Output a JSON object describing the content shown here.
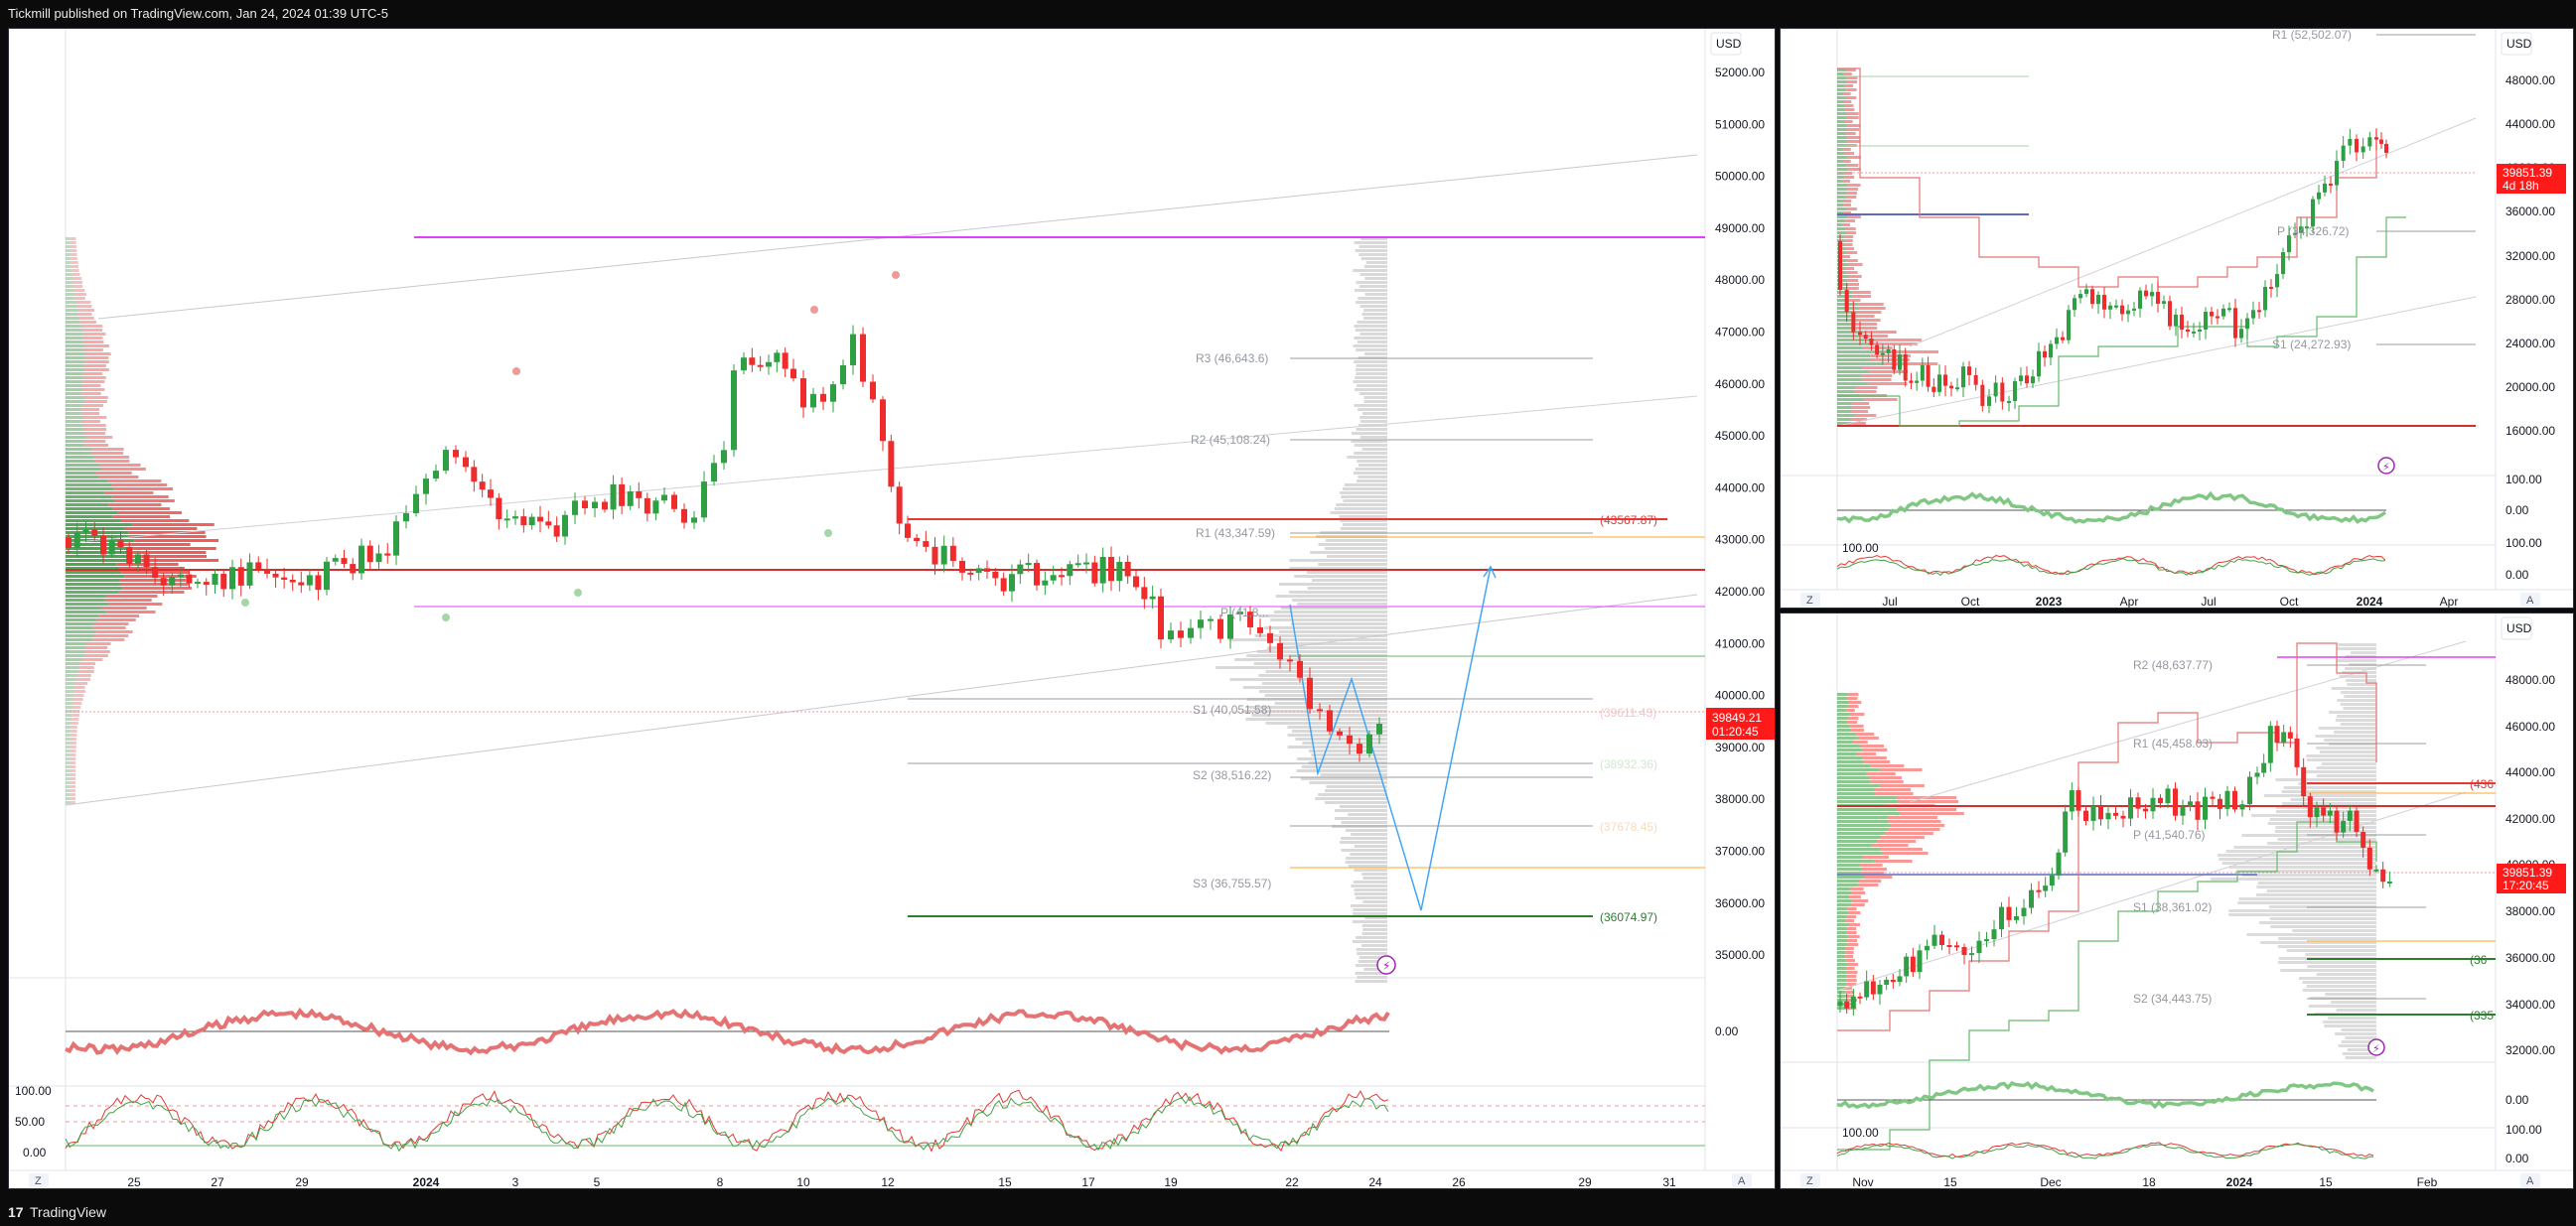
{
  "header": {
    "text": "Tickmill published on TradingView.com, Jan 24, 2024 01:39 UTC-5"
  },
  "footer": {
    "logo": "17",
    "brand": "TradingView"
  },
  "currency": "USD",
  "colors": {
    "bull": "#2ea043",
    "bear": "#ef2b2b",
    "price_tag": "#ff1a1a",
    "magenta": "#e040fb",
    "blue": "#2962ff"
  },
  "main": {
    "price_axis": [
      "52000.00",
      "51000.00",
      "50000.00",
      "49000.00",
      "48000.00",
      "47000.00",
      "46000.00",
      "45000.00",
      "44000.00",
      "43000.00",
      "42000.00",
      "41000.00",
      "40000.00",
      "39000.00",
      "38000.00",
      "37000.00",
      "36000.00",
      "35000.00"
    ],
    "osc_axis": "0.00",
    "stoch_axis": [
      "100.00",
      "50.00",
      "0.00"
    ],
    "time_axis": [
      "25",
      "27",
      "29",
      "2024",
      "3",
      "5",
      "8",
      "10",
      "12",
      "15",
      "17",
      "19",
      "22",
      "24",
      "26",
      "29",
      "31"
    ],
    "price_tag": {
      "value": "39849.21",
      "countdown": "01:20:45"
    },
    "levels": {
      "r3": "R3 (46,643.6)",
      "r2": "R2 (45,108.24)",
      "r1": "R1 (43,347.59)",
      "p": "P (41,8...",
      "s1": "S1 (40,051.58)",
      "s2": "S2 (38,516.22)",
      "s3": "S3 (36,755.57)",
      "red_level": "(43567.87)",
      "green_level": "(36074.97)",
      "faded_1": "(39611.43)",
      "faded_2": "(38932.36)",
      "faded_3": "(37678.45)"
    },
    "ctrl_z": "Z",
    "ctrl_a": "A"
  },
  "top_right": {
    "price_axis": [
      "48000.00",
      "44000.00",
      "40000.00",
      "36000.00",
      "32000.00",
      "28000.00",
      "24000.00",
      "20000.00",
      "16000.00"
    ],
    "osc_axis": [
      "100.00",
      "0.00"
    ],
    "stoch_axis": [
      "100.00",
      "100.00",
      "0.00"
    ],
    "time_axis": [
      "Jul",
      "Oct",
      "2023",
      "Apr",
      "Jul",
      "Oct",
      "2024",
      "Apr"
    ],
    "price_tag": {
      "value": "39851.39",
      "countdown": "4d 18h"
    },
    "levels": {
      "r1": "R1 (52,502.07)",
      "p": "P (34,326.72)",
      "s1": "S1 (24,272.93)"
    },
    "ctrl_z": "Z",
    "ctrl_a": "A"
  },
  "bottom_right": {
    "price_axis": [
      "48000.00",
      "46000.00",
      "44000.00",
      "42000.00",
      "40000.00",
      "38000.00",
      "36000.00",
      "34000.00",
      "32000.00"
    ],
    "osc_axis": "0.00",
    "stoch_axis": [
      "100.00",
      "100.00",
      "0.00"
    ],
    "time_axis": [
      "Nov",
      "15",
      "Dec",
      "18",
      "2024",
      "15",
      "Feb"
    ],
    "price_tag": {
      "value": "39851.39",
      "countdown": "17:20:45"
    },
    "levels": {
      "r2": "R2 (48,637.77)",
      "r1": "R1 (45,458.03)",
      "p": "P (41,540.76)",
      "s1": "S1 (38,361.02)",
      "s2": "S2 (34,443.75)",
      "cut_1": "(436",
      "cut_2": "(36",
      "cut_3": "(335"
    },
    "ctrl_z": "Z",
    "ctrl_a": "A"
  }
}
